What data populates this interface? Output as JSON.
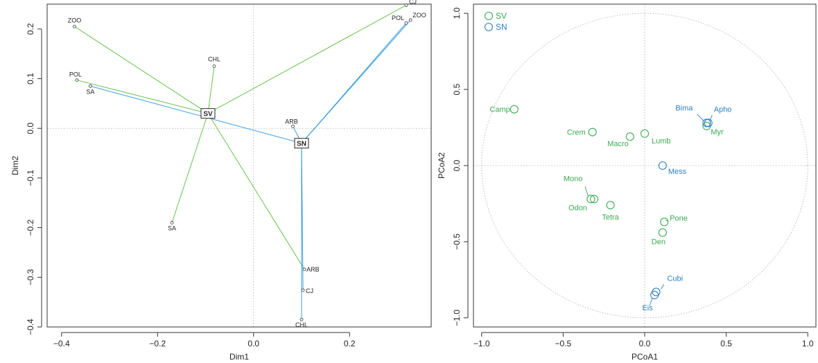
{
  "chart_data": [
    {
      "type": "scatter",
      "xlabel": "Dim1",
      "ylabel": "Dim2",
      "xlim": [
        -0.43,
        0.37
      ],
      "ylim": [
        -0.4,
        0.25
      ],
      "xticks": [
        -0.4,
        -0.2,
        0.0,
        0.2
      ],
      "yticks": [
        -0.4,
        -0.3,
        -0.2,
        -0.1,
        0.0,
        0.1,
        0.2
      ],
      "tick_labels_x": [
        "−0.4",
        "−0.2",
        "0.0",
        "0.2"
      ],
      "tick_labels_y": [
        "−0.4",
        "−0.3",
        "−0.2",
        "−0.1",
        "0.0",
        "0.1",
        "0.2"
      ],
      "reference_lines": {
        "x": 0.0,
        "y": 0.0
      },
      "colors": {
        "SV": "#66c24a",
        "SN": "#3c9de0"
      },
      "centroids": [
        {
          "label": "SV",
          "x": -0.095,
          "y": 0.03
        },
        {
          "label": "SN",
          "x": 0.1,
          "y": -0.03
        }
      ],
      "series": [
        {
          "name": "SV",
          "points": [
            {
              "label": "ZOO",
              "x": -0.373,
              "y": 0.205
            },
            {
              "label": "POL",
              "x": -0.368,
              "y": 0.097
            },
            {
              "label": "SA",
              "x": -0.17,
              "y": -0.19
            },
            {
              "label": "CHL",
              "x": -0.082,
              "y": 0.125
            },
            {
              "label": "CJ",
              "x": 0.318,
              "y": 0.248
            },
            {
              "label": "ARB",
              "x": 0.106,
              "y": -0.284
            }
          ]
        },
        {
          "name": "SN",
          "points": [
            {
              "label": "SA",
              "x": -0.34,
              "y": 0.085
            },
            {
              "label": "ARB",
              "x": 0.082,
              "y": 0.004
            },
            {
              "label": "POL",
              "x": 0.318,
              "y": 0.212
            },
            {
              "label": "ZOO",
              "x": 0.327,
              "y": 0.218
            },
            {
              "label": "CJ",
              "x": 0.103,
              "y": -0.326
            },
            {
              "label": "CHL",
              "x": 0.1,
              "y": -0.385
            }
          ]
        }
      ]
    },
    {
      "type": "scatter",
      "xlabel": "PCoA1",
      "ylabel": "PCoA2",
      "xlim": [
        -1.05,
        1.05
      ],
      "ylim": [
        -1.06,
        1.06
      ],
      "xticks": [
        -1.0,
        -0.5,
        0.0,
        0.5,
        1.0
      ],
      "yticks": [
        -1.0,
        -0.5,
        0.0,
        0.5,
        1.0
      ],
      "tick_labels_x": [
        "−1.0",
        "−0.5",
        "0.0",
        "0.5",
        "1.0"
      ],
      "tick_labels_y": [
        "−1.0",
        "−0.5",
        "0.0",
        "0.5",
        "1.0"
      ],
      "reference_lines": {
        "x": 0.0,
        "y": 0.0
      },
      "circle_radius": 1.0,
      "legend": [
        {
          "label": "SV",
          "color": "#3aaa52"
        },
        {
          "label": "SN",
          "color": "#2d7fc1"
        }
      ],
      "legend_position": "top-left",
      "series": [
        {
          "name": "SV",
          "color": "#3aaa52",
          "points": [
            {
              "label": "Camp",
              "x": -0.8,
              "y": 0.37
            },
            {
              "label": "Crem",
              "x": -0.32,
              "y": 0.22
            },
            {
              "label": "Macro",
              "x": -0.09,
              "y": 0.19
            },
            {
              "label": "Lumb",
              "x": 0.0,
              "y": 0.21
            },
            {
              "label": "Myr",
              "x": 0.38,
              "y": 0.26
            },
            {
              "label": "Mono",
              "x": -0.33,
              "y": -0.22
            },
            {
              "label": "Odon",
              "x": -0.31,
              "y": -0.22
            },
            {
              "label": "Tetra",
              "x": -0.21,
              "y": -0.26
            },
            {
              "label": "Pone",
              "x": 0.12,
              "y": -0.37
            },
            {
              "label": "Den",
              "x": 0.11,
              "y": -0.44
            }
          ]
        },
        {
          "name": "SN",
          "color": "#2d7fc1",
          "points": [
            {
              "label": "Bima",
              "x": 0.38,
              "y": 0.28
            },
            {
              "label": "Apho",
              "x": 0.39,
              "y": 0.28
            },
            {
              "label": "Mess",
              "x": 0.11,
              "y": 0.0
            },
            {
              "label": "Cubi",
              "x": 0.07,
              "y": -0.83
            },
            {
              "label": "Eis",
              "x": 0.06,
              "y": -0.85
            }
          ]
        }
      ]
    }
  ]
}
